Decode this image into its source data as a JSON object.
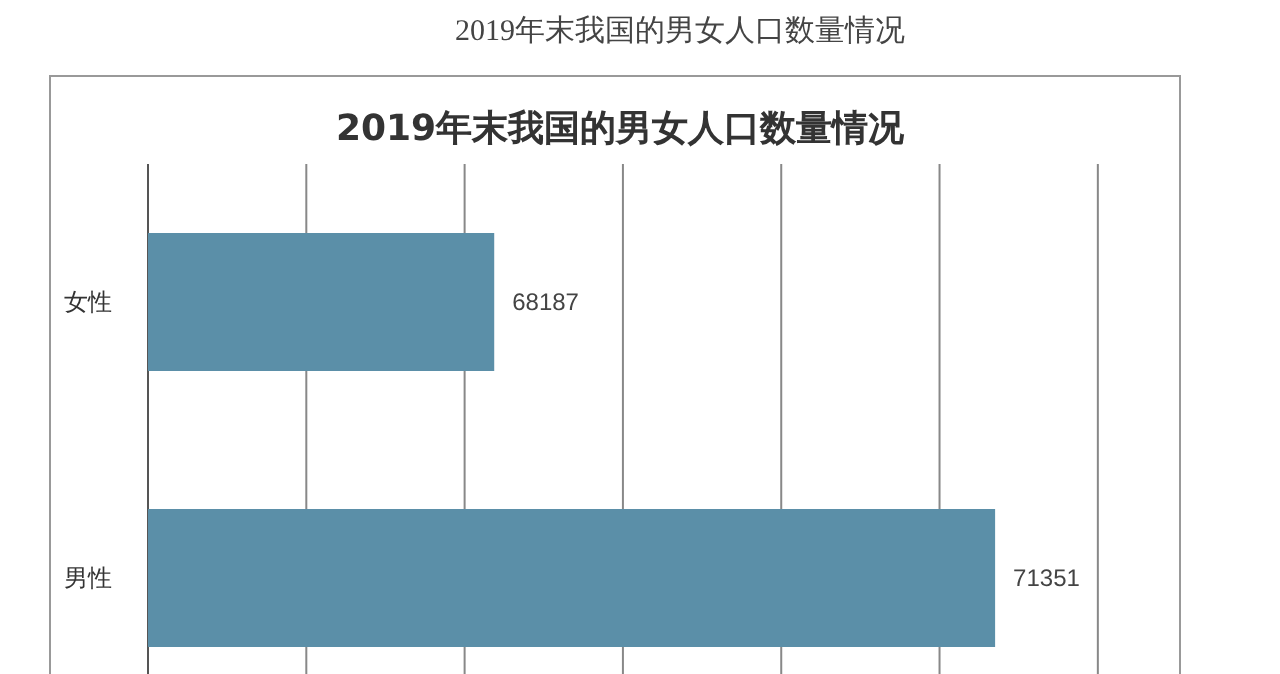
{
  "chart_data": {
    "type": "bar",
    "orientation": "horizontal",
    "title": "2019年末我国的男女人口数量情况",
    "subtitle": "2019年末我国的男女人口数量情况",
    "categories": [
      "女性",
      "男性"
    ],
    "values": [
      68187,
      71351
    ],
    "color": "#5b8fa8",
    "data_labels": true,
    "xlim": [
      66000,
      72500
    ],
    "xticks": [
      {
        "value": 66000,
        "label": null
      },
      {
        "value": 67000,
        "label": null
      },
      {
        "value": 68000,
        "label": null
      },
      {
        "value": 69000,
        "label": null
      },
      {
        "value": 70000,
        "label": null
      },
      {
        "value": 71000,
        "label": null
      },
      {
        "value": 72000,
        "label": null
      }
    ],
    "grid": "x",
    "tick_labels": "y"
  }
}
